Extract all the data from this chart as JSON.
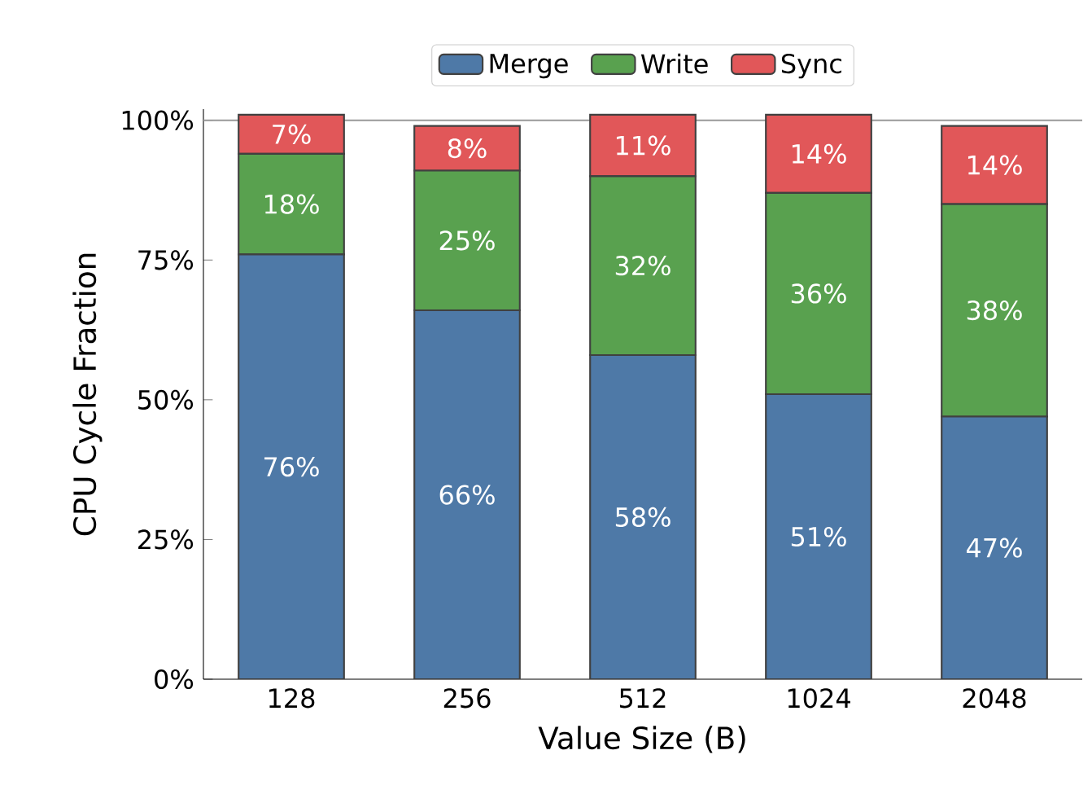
{
  "chart_data": {
    "type": "bar",
    "stacked": true,
    "xlabel": "Value Size (B)",
    "ylabel": "CPU Cycle Fraction",
    "categories": [
      "128",
      "256",
      "512",
      "1024",
      "2048"
    ],
    "series": [
      {
        "name": "Merge",
        "color": "#4e79a7",
        "values": [
          76,
          66,
          58,
          51,
          47
        ],
        "value_labels": [
          "76%",
          "66%",
          "58%",
          "51%",
          "47%"
        ]
      },
      {
        "name": "Write",
        "color": "#59a14f",
        "values": [
          18,
          25,
          32,
          36,
          38
        ],
        "value_labels": [
          "18%",
          "25%",
          "32%",
          "36%",
          "38%"
        ]
      },
      {
        "name": "Sync",
        "color": "#e15759",
        "values": [
          7,
          8,
          11,
          14,
          14
        ],
        "value_labels": [
          "7%",
          "8%",
          "11%",
          "14%",
          "14%"
        ]
      }
    ],
    "ylim": [
      0,
      102
    ],
    "yticks": [
      {
        "value": 0,
        "label": "0%"
      },
      {
        "value": 25,
        "label": "25%"
      },
      {
        "value": 50,
        "label": "50%"
      },
      {
        "value": 75,
        "label": "75%"
      },
      {
        "value": 100,
        "label": "100%"
      }
    ],
    "ref_lines": [
      {
        "axis": "y",
        "value": 100,
        "color": "#999999"
      }
    ],
    "grid": false,
    "legend": "top"
  }
}
